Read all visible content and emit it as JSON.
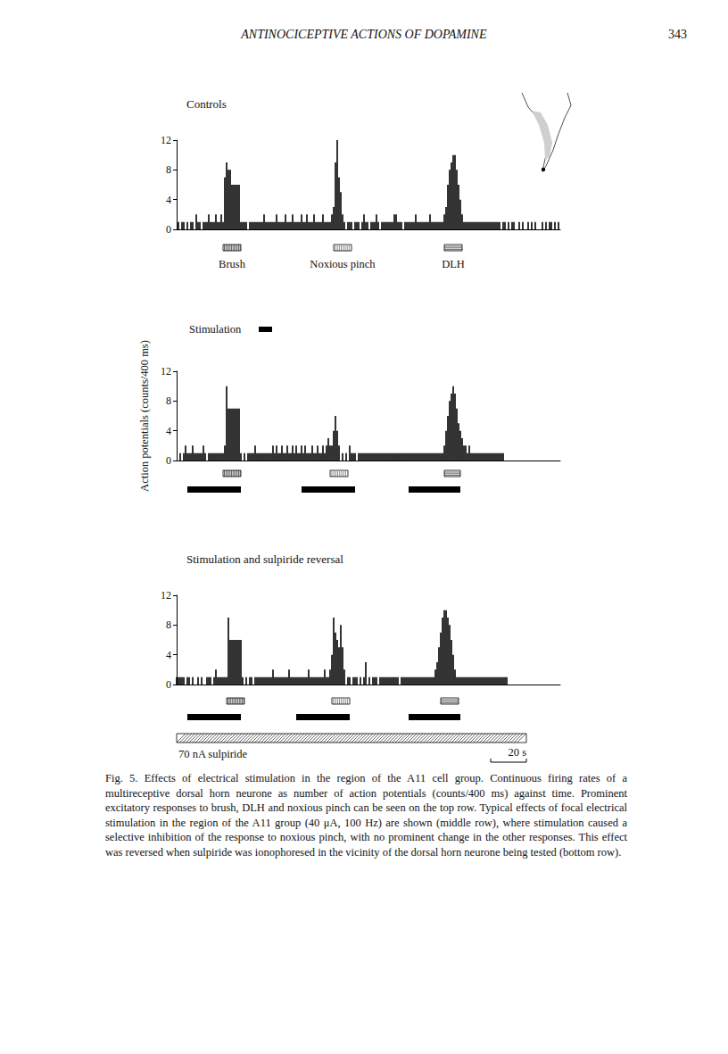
{
  "header": {
    "title": "ANTINOCICEPTIVE ACTIONS OF DOPAMINE",
    "page": "343"
  },
  "chart_data": [
    {
      "type": "bar",
      "title": "Controls",
      "color": "#000000",
      "tick_labels": "y",
      "xlim": [
        0,
        215
      ],
      "ylim": [
        0,
        12
      ],
      "yticks": [
        0,
        4,
        8,
        12
      ],
      "x": [
        0,
        1,
        2,
        3,
        4,
        5,
        6,
        7,
        8,
        9,
        10,
        11,
        12,
        13,
        14,
        15,
        16,
        17,
        18,
        19,
        20,
        21,
        22,
        23,
        24,
        25,
        26,
        27,
        28,
        29,
        30,
        31,
        32,
        33,
        34,
        35,
        36,
        37,
        38,
        39,
        40,
        41,
        42,
        43,
        44,
        45,
        46,
        47,
        48,
        49,
        50,
        51,
        52,
        53,
        54,
        55,
        56,
        57,
        58,
        59,
        60,
        61,
        62,
        63,
        64,
        65,
        66,
        67,
        68,
        69,
        70,
        71,
        72,
        73,
        74,
        75,
        76,
        77,
        78,
        79,
        80,
        81,
        82,
        83,
        84,
        85,
        86,
        87,
        88,
        89,
        90,
        91,
        92,
        93,
        94,
        95,
        96,
        97,
        98,
        99,
        100,
        101,
        102,
        103,
        104,
        105,
        106,
        107,
        108,
        109,
        110,
        111,
        112,
        113,
        114,
        115,
        116,
        117,
        118,
        119,
        120,
        121,
        122,
        123,
        124,
        125,
        126,
        127,
        128,
        129,
        130,
        131,
        132,
        133,
        134,
        135,
        136,
        137,
        138,
        139,
        140,
        141,
        142,
        143,
        144,
        145,
        146,
        147,
        148,
        149,
        150,
        151,
        152,
        153,
        154,
        155,
        156,
        157,
        158,
        159,
        160,
        161,
        162,
        163,
        164,
        165,
        166,
        167,
        168,
        169,
        170,
        171,
        172,
        173,
        174,
        175,
        176,
        177,
        178,
        179,
        180,
        181,
        182,
        183,
        184,
        185,
        186,
        187,
        188,
        189,
        190,
        191,
        192,
        193,
        194,
        195,
        196,
        197,
        198,
        199,
        200,
        201,
        202,
        203,
        204,
        205,
        206,
        207,
        208,
        209,
        210,
        211,
        212,
        213,
        214
      ],
      "values": [
        0,
        1,
        0,
        1,
        1,
        0,
        1,
        0,
        1,
        1,
        0,
        2,
        1,
        1,
        0,
        1,
        1,
        1,
        2,
        1,
        1,
        1,
        2,
        1,
        1,
        2,
        1,
        7,
        9,
        8,
        8,
        6,
        6,
        6,
        6,
        6,
        1,
        1,
        1,
        1,
        0,
        1,
        1,
        1,
        1,
        1,
        1,
        1,
        1,
        2,
        1,
        1,
        1,
        1,
        1,
        1,
        2,
        1,
        1,
        1,
        1,
        2,
        1,
        1,
        1,
        2,
        1,
        1,
        1,
        1,
        2,
        1,
        1,
        2,
        1,
        1,
        1,
        2,
        1,
        1,
        1,
        1,
        2,
        1,
        1,
        1,
        1,
        2,
        3,
        9,
        12,
        7,
        5,
        2,
        1,
        0,
        1,
        1,
        1,
        0,
        1,
        1,
        1,
        0,
        1,
        2,
        1,
        1,
        0,
        1,
        1,
        1,
        2,
        1,
        0,
        1,
        1,
        1,
        1,
        1,
        1,
        1,
        2,
        2,
        1,
        1,
        1,
        0,
        1,
        1,
        1,
        1,
        1,
        1,
        2,
        1,
        1,
        1,
        1,
        1,
        1,
        1,
        2,
        1,
        1,
        1,
        1,
        1,
        1,
        1,
        2,
        3,
        6,
        8,
        9,
        10,
        10,
        8,
        6,
        4,
        2,
        1,
        1,
        1,
        1,
        1,
        1,
        1,
        1,
        1,
        1,
        1,
        1,
        1,
        1,
        1,
        1,
        1,
        1,
        1,
        1,
        1,
        0,
        1,
        1,
        0,
        1,
        0,
        1,
        1,
        0,
        0,
        1,
        0,
        1,
        0,
        0,
        1,
        0,
        1,
        0,
        1,
        0,
        0,
        0,
        1,
        0,
        1,
        0,
        1,
        1,
        0,
        1,
        0,
        1
      ],
      "events": [
        {
          "label": "Brush",
          "start": 26,
          "end": 36
        },
        {
          "label": "Noxious pinch",
          "start": 88,
          "end": 98
        },
        {
          "label": "DLH",
          "start": 150,
          "end": 160
        }
      ]
    },
    {
      "type": "bar",
      "color": "#000000",
      "tick_labels": "y",
      "y_label": "Action potentials (counts/400 ms)",
      "stimulation_label": "Stimulation",
      "xlim": [
        0,
        215
      ],
      "ylim": [
        0,
        12
      ],
      "yticks": [
        0,
        4,
        8,
        12
      ],
      "x": [
        0,
        1,
        2,
        3,
        4,
        5,
        6,
        7,
        8,
        9,
        10,
        11,
        12,
        13,
        14,
        15,
        16,
        17,
        18,
        19,
        20,
        21,
        22,
        23,
        24,
        25,
        26,
        27,
        28,
        29,
        30,
        31,
        32,
        33,
        34,
        35,
        36,
        37,
        38,
        39,
        40,
        41,
        42,
        43,
        44,
        45,
        46,
        47,
        48,
        49,
        50,
        51,
        52,
        53,
        54,
        55,
        56,
        57,
        58,
        59,
        60,
        61,
        62,
        63,
        64,
        65,
        66,
        67,
        68,
        69,
        70,
        71,
        72,
        73,
        74,
        75,
        76,
        77,
        78,
        79,
        80,
        81,
        82,
        83,
        84,
        85,
        86,
        87,
        88,
        89,
        90,
        91,
        92,
        93,
        94,
        95,
        96,
        97,
        98,
        99,
        100,
        101,
        102,
        103,
        104,
        105,
        106,
        107,
        108,
        109,
        110,
        111,
        112,
        113,
        114,
        115,
        116,
        117,
        118,
        119,
        120,
        121,
        122,
        123,
        124,
        125,
        126,
        127,
        128,
        129,
        130,
        131,
        132,
        133,
        134,
        135,
        136,
        137,
        138,
        139,
        140,
        141,
        142,
        143,
        144,
        145,
        146,
        147,
        148,
        149,
        150,
        151,
        152,
        153,
        154,
        155,
        156,
        157,
        158,
        159,
        160,
        161,
        162,
        163,
        164,
        165,
        166,
        167,
        168,
        169,
        170,
        171,
        172,
        173,
        174,
        175,
        176,
        177,
        178,
        179,
        180,
        181,
        182,
        183
      ],
      "values": [
        0,
        0,
        1,
        0,
        1,
        2,
        1,
        1,
        1,
        2,
        1,
        1,
        1,
        1,
        1,
        2,
        1,
        0,
        1,
        1,
        1,
        1,
        1,
        1,
        1,
        1,
        1,
        2,
        10,
        7,
        7,
        7,
        7,
        7,
        7,
        7,
        1,
        0,
        1,
        0,
        1,
        1,
        1,
        1,
        2,
        1,
        1,
        1,
        1,
        1,
        1,
        1,
        1,
        1,
        2,
        1,
        2,
        1,
        1,
        2,
        1,
        1,
        2,
        1,
        1,
        2,
        1,
        2,
        1,
        1,
        2,
        1,
        2,
        1,
        1,
        1,
        2,
        1,
        1,
        2,
        1,
        1,
        2,
        1,
        2,
        3,
        2,
        2,
        4,
        6,
        4,
        2,
        0,
        1,
        0,
        1,
        0,
        2,
        1,
        1,
        1,
        0,
        1,
        1,
        1,
        1,
        1,
        1,
        1,
        1,
        1,
        1,
        1,
        1,
        1,
        1,
        1,
        1,
        1,
        1,
        1,
        1,
        1,
        1,
        1,
        1,
        1,
        1,
        1,
        1,
        1,
        1,
        1,
        1,
        1,
        1,
        1,
        1,
        1,
        1,
        1,
        1,
        1,
        1,
        1,
        1,
        1,
        1,
        1,
        1,
        2,
        4,
        6,
        8,
        9,
        10,
        9,
        7,
        5,
        4,
        3,
        2,
        2,
        1,
        2,
        1,
        1,
        1,
        1,
        1,
        1,
        1,
        1,
        1,
        1,
        1,
        1,
        1,
        1,
        1,
        1,
        1,
        1,
        1
      ],
      "events": [
        {
          "start": 26,
          "end": 36
        },
        {
          "start": 86,
          "end": 96
        },
        {
          "start": 150,
          "end": 159
        }
      ],
      "stimulation": [
        {
          "start": 6,
          "end": 36
        },
        {
          "start": 70,
          "end": 100
        },
        {
          "start": 130,
          "end": 159
        }
      ]
    },
    {
      "type": "bar",
      "title": "Stimulation and sulpiride reversal",
      "color": "#000000",
      "tick_labels": "y",
      "xlim": [
        0,
        215
      ],
      "ylim": [
        0,
        12
      ],
      "yticks": [
        0,
        4,
        8,
        12
      ],
      "x": [
        0,
        1,
        2,
        3,
        4,
        5,
        6,
        7,
        8,
        9,
        10,
        11,
        12,
        13,
        14,
        15,
        16,
        17,
        18,
        19,
        20,
        21,
        22,
        23,
        24,
        25,
        26,
        27,
        28,
        29,
        30,
        31,
        32,
        33,
        34,
        35,
        36,
        37,
        38,
        39,
        40,
        41,
        42,
        43,
        44,
        45,
        46,
        47,
        48,
        49,
        50,
        51,
        52,
        53,
        54,
        55,
        56,
        57,
        58,
        59,
        60,
        61,
        62,
        63,
        64,
        65,
        66,
        67,
        68,
        69,
        70,
        71,
        72,
        73,
        74,
        75,
        76,
        77,
        78,
        79,
        80,
        81,
        82,
        83,
        84,
        85,
        86,
        87,
        88,
        89,
        90,
        91,
        92,
        93,
        94,
        95,
        96,
        97,
        98,
        99,
        100,
        101,
        102,
        103,
        104,
        105,
        106,
        107,
        108,
        109,
        110,
        111,
        112,
        113,
        114,
        115,
        116,
        117,
        118,
        119,
        120,
        121,
        122,
        123,
        124,
        125,
        126,
        127,
        128,
        129,
        130,
        131,
        132,
        133,
        134,
        135,
        136,
        137,
        138,
        139,
        140,
        141,
        142,
        143,
        144,
        145,
        146,
        147,
        148,
        149,
        150,
        151,
        152,
        153,
        154,
        155,
        156,
        157,
        158,
        159,
        160,
        161,
        162,
        163,
        164,
        165,
        166,
        167,
        168,
        169,
        170,
        171,
        172,
        173,
        174,
        175,
        176,
        177,
        178,
        179,
        180,
        181,
        182,
        183,
        184,
        185
      ],
      "values": [
        1,
        1,
        1,
        1,
        1,
        0,
        1,
        1,
        0,
        1,
        0,
        0,
        1,
        0,
        1,
        0,
        0,
        1,
        1,
        1,
        0,
        1,
        2,
        1,
        1,
        1,
        1,
        1,
        1,
        9,
        6,
        6,
        6,
        6,
        6,
        6,
        6,
        1,
        0,
        1,
        0,
        1,
        1,
        0,
        1,
        1,
        1,
        1,
        1,
        1,
        1,
        1,
        1,
        1,
        2,
        1,
        1,
        1,
        1,
        1,
        1,
        1,
        1,
        2,
        1,
        1,
        1,
        1,
        1,
        1,
        1,
        1,
        1,
        1,
        2,
        1,
        1,
        1,
        1,
        1,
        1,
        1,
        1,
        2,
        1,
        1,
        2,
        4,
        9,
        7,
        6,
        5,
        8,
        5,
        2,
        0,
        1,
        1,
        0,
        1,
        1,
        1,
        0,
        1,
        0,
        1,
        3,
        0,
        1,
        0,
        1,
        1,
        1,
        0,
        1,
        1,
        1,
        1,
        1,
        1,
        1,
        1,
        1,
        1,
        1,
        0,
        1,
        1,
        1,
        1,
        1,
        1,
        1,
        1,
        1,
        1,
        1,
        1,
        1,
        1,
        1,
        1,
        1,
        1,
        1,
        2,
        3,
        5,
        7,
        9,
        10,
        10,
        9,
        8,
        6,
        4,
        2,
        1,
        1,
        1,
        1,
        1,
        1,
        1,
        1,
        1,
        1,
        1,
        1,
        1,
        1,
        1,
        1,
        1,
        1,
        1,
        1,
        1,
        1,
        1,
        1,
        1,
        1,
        1,
        1,
        1
      ],
      "events": [
        {
          "start": 28,
          "end": 38
        },
        {
          "start": 87,
          "end": 97
        },
        {
          "start": 148,
          "end": 158
        }
      ],
      "stimulation": [
        {
          "start": 6,
          "end": 36
        },
        {
          "start": 67,
          "end": 97
        },
        {
          "start": 130,
          "end": 159
        }
      ],
      "drug": {
        "label": "70 nA sulpiride",
        "start": 0,
        "end": 196
      },
      "scale_bar": {
        "value": 20,
        "label": "20 s"
      }
    }
  ],
  "caption": {
    "label": "Fig. 5.",
    "text": "Effects of electrical stimulation in the region of the A11 cell group. Continuous firing rates of a multireceptive dorsal horn neurone as number of action potentials (counts/400 ms) against time. Prominent excitatory responses to brush, DLH and noxious pinch can be seen on the top row. Typical effects of focal electrical stimulation in the region of the A11 group (40 μA, 100 Hz) are shown (middle row), where stimulation caused a selective inhibition of the response to noxious pinch, with no prominent change in the other responses. This effect was reversed when sulpiride was ionophoresed in the vicinity of the dorsal horn neurone being tested (bottom row)."
  }
}
